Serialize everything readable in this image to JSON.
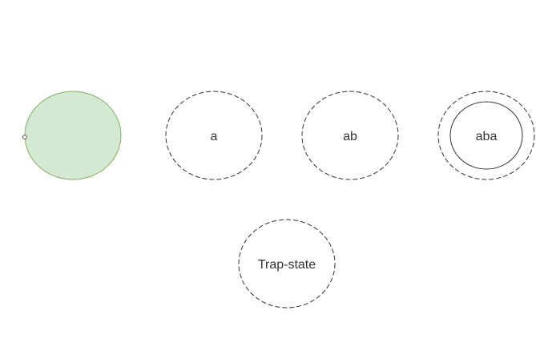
{
  "diagram": {
    "type": "state-machine",
    "colors": {
      "start_fill": "#d5e8d4",
      "start_stroke": "#82b366",
      "state_stroke": "#333333",
      "label": "#333333"
    },
    "states": [
      {
        "id": "start",
        "label": "",
        "kind": "start"
      },
      {
        "id": "a",
        "label": "a",
        "kind": "normal"
      },
      {
        "id": "ab",
        "label": "ab",
        "kind": "normal"
      },
      {
        "id": "aba",
        "label": "aba",
        "kind": "accepting"
      },
      {
        "id": "trap",
        "label": "Trap-state",
        "kind": "normal"
      }
    ]
  }
}
